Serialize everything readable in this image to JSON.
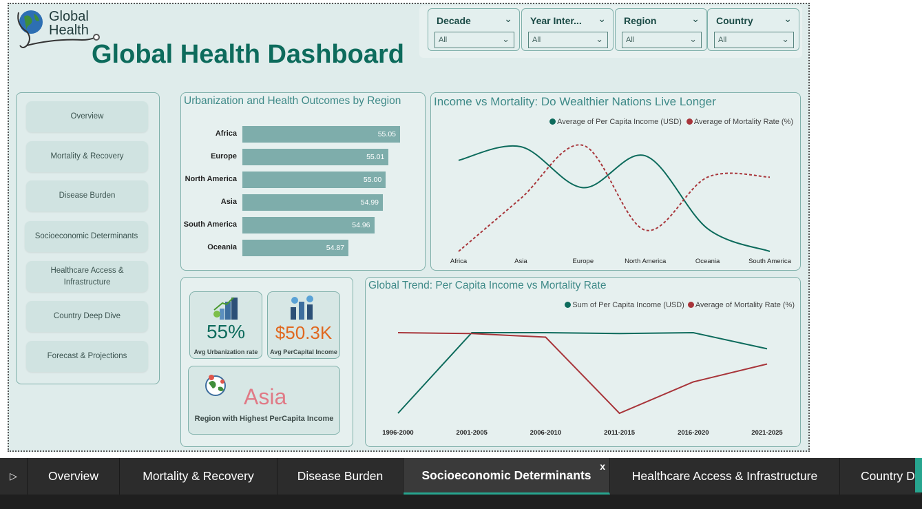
{
  "logo": {
    "line1": "Global",
    "line2": "Health"
  },
  "page_title": "Global Health Dashboard",
  "slicers": [
    {
      "label": "Decade",
      "value": "All"
    },
    {
      "label": "Year Inter...",
      "value": "All"
    },
    {
      "label": "Region",
      "value": "All"
    },
    {
      "label": "Country",
      "value": "All"
    }
  ],
  "nav": [
    "Overview",
    "Mortality & Recovery",
    "Disease Burden",
    "Socioeconomic Determinants",
    "Healthcare Access & Infrastructure",
    "Country Deep Dive",
    "Forecast & Projections"
  ],
  "kpis": {
    "urban_value": "55%",
    "urban_caption": "Avg Urbanization rate",
    "income_value": "$50.3K",
    "income_caption": "Avg PerCapital Income",
    "region_value": "Asia",
    "region_caption": "Region with Highest PerCapita Income"
  },
  "tabs": [
    "Overview",
    "Mortality & Recovery",
    "Disease Burden",
    "Socioeconomic Determinants",
    "Healthcare Access & Infrastructure",
    "Country D"
  ],
  "tab_close": "x",
  "colors": {
    "teal": "#0d6b5c",
    "red": "#a8353a",
    "bar": "#7eadab",
    "accent": "#27a58f"
  },
  "chart_data": [
    {
      "type": "bar",
      "title": "Urbanization and Health Outcomes by Region",
      "categories": [
        "Africa",
        "Europe",
        "North America",
        "Asia",
        "South America",
        "Oceania"
      ],
      "values": [
        55.05,
        55.01,
        55.0,
        54.99,
        54.96,
        54.87
      ],
      "value_labels": [
        "55.05",
        "55.01",
        "55.00",
        "54.99",
        "54.96",
        "54.87"
      ]
    },
    {
      "type": "line",
      "title": "Income vs Mortality: Do Wealthier Nations Live Longer",
      "categories": [
        "Africa",
        "Asia",
        "Europe",
        "North America",
        "Oceania",
        "South America"
      ],
      "series": [
        {
          "name": "Average of Per Capita Income (USD)",
          "values": [
            50300,
            50450,
            50000,
            50350,
            49550,
            49300
          ]
        },
        {
          "name": "Average of Mortality Rate (%)",
          "values": [
            5.02,
            5.07,
            5.12,
            5.04,
            5.09,
            5.09
          ]
        }
      ],
      "legend": "top-right"
    },
    {
      "type": "line",
      "title": "Global Trend: Per Capita Income vs Mortality Rate",
      "categories": [
        "1996-2000",
        "2001-2005",
        "2006-2010",
        "2011-2015",
        "2016-2020",
        "2021-2025"
      ],
      "series": [
        {
          "name": "Sum of Per Capita Income (USD)",
          "values": [
            0.1,
            1.0,
            1.0,
            0.99,
            1.0,
            0.82
          ]
        },
        {
          "name": "Average of Mortality Rate (%)",
          "values": [
            1.0,
            0.99,
            0.95,
            0.1,
            0.45,
            0.65
          ]
        }
      ],
      "legend": "top-right"
    }
  ]
}
